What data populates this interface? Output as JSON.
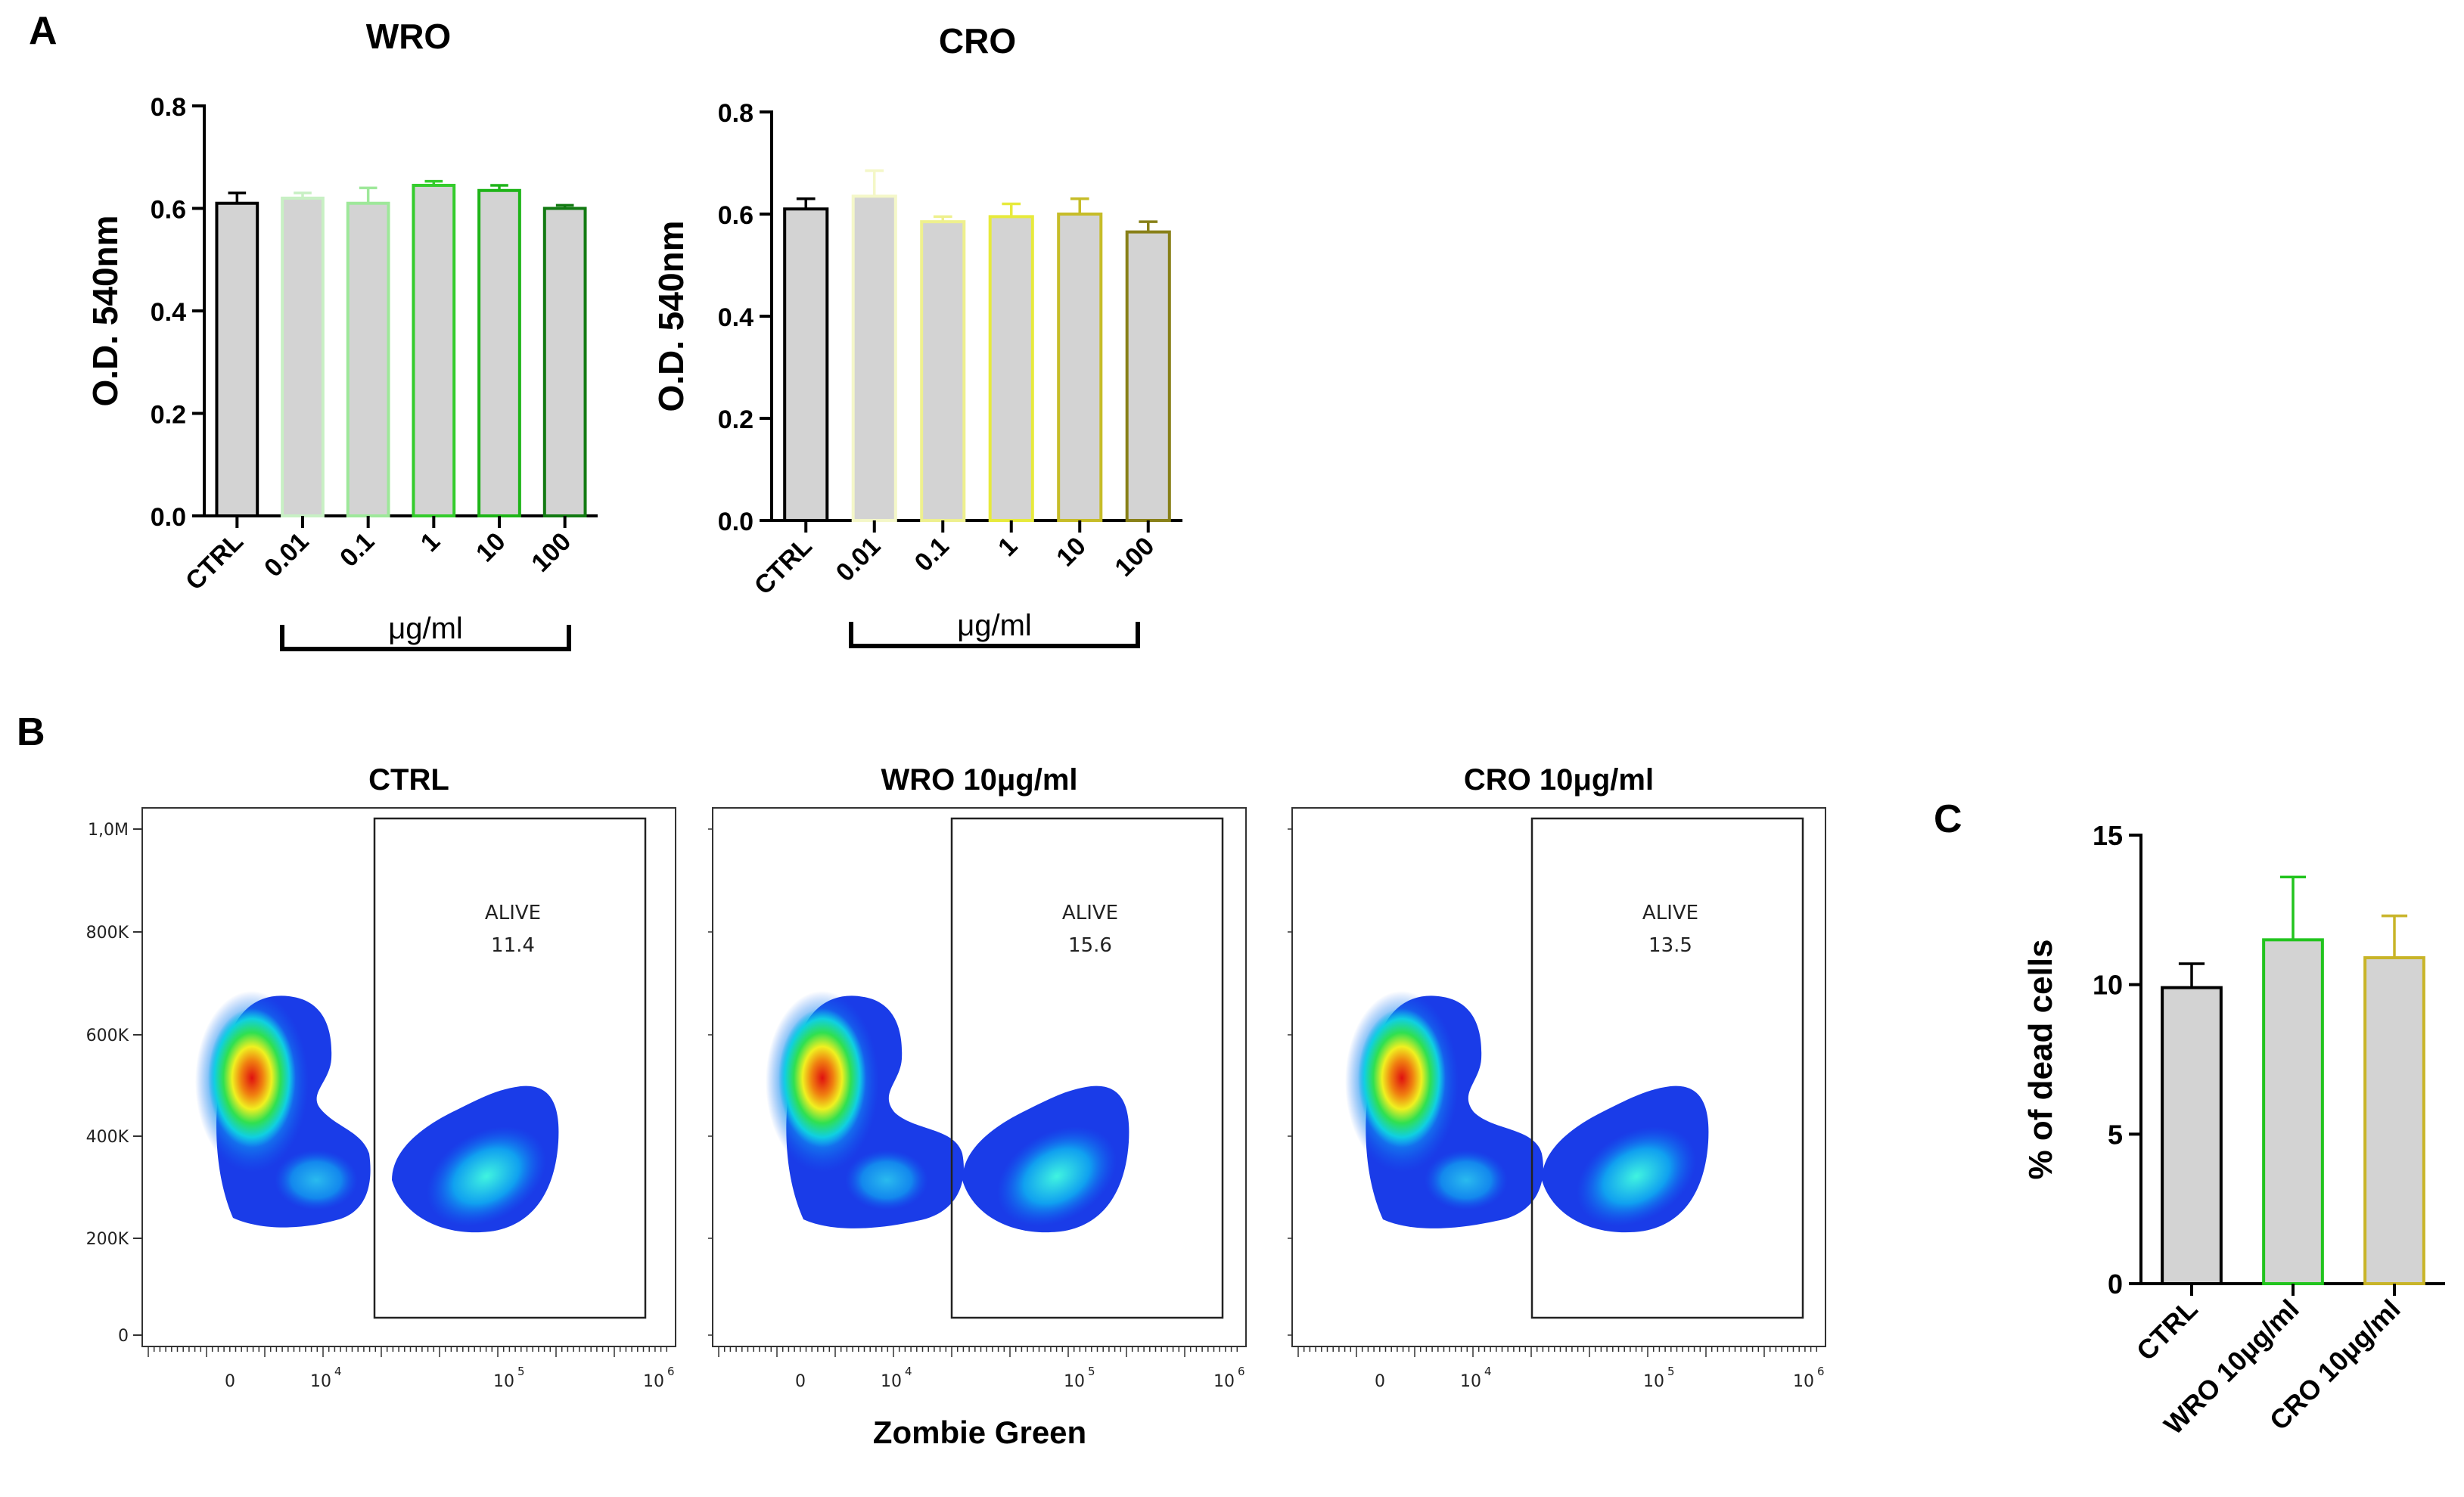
{
  "panel_labels": {
    "a": "A",
    "b": "B",
    "c": "C"
  },
  "colors": {
    "bar_fill": "#d3d3d3",
    "ctrl": "#000000",
    "wro": [
      "#000000",
      "#c8f0c4",
      "#9ee89a",
      "#34cc2c",
      "#1eb418",
      "#127a12"
    ],
    "cro": [
      "#000000",
      "#f4f7c8",
      "#eef08e",
      "#e7ea3c",
      "#c6bc28",
      "#888018"
    ],
    "c_panel": [
      "#000000",
      "#22c41e",
      "#c8b428"
    ]
  },
  "chart_data": [
    {
      "type": "bar",
      "title": "WRO",
      "ylabel": "O.D. 540nm",
      "xlabel": "",
      "categories": [
        "CTRL",
        "0.01",
        "0.1",
        "1",
        "10",
        "100"
      ],
      "values": [
        0.61,
        0.62,
        0.61,
        0.645,
        0.635,
        0.6
      ],
      "errors": [
        0.02,
        0.01,
        0.03,
        0.008,
        0.01,
        0.006
      ],
      "ylim": [
        0,
        0.8
      ],
      "yticks": [
        "0.0",
        "0.2",
        "0.4",
        "0.6",
        "0.8"
      ],
      "bracket_label": "μg/ml"
    },
    {
      "type": "bar",
      "title": "CRO",
      "ylabel": "O.D. 540nm",
      "xlabel": "",
      "categories": [
        "CTRL",
        "0.01",
        "0.1",
        "1",
        "10",
        "100"
      ],
      "values": [
        0.61,
        0.635,
        0.585,
        0.595,
        0.6,
        0.565
      ],
      "errors": [
        0.02,
        0.05,
        0.01,
        0.025,
        0.03,
        0.02
      ],
      "ylim": [
        0,
        0.8
      ],
      "yticks": [
        "0.0",
        "0.2",
        "0.4",
        "0.6",
        "0.8"
      ],
      "bracket_label": "μg/ml"
    },
    {
      "type": "bar",
      "title": "",
      "ylabel": "% of dead cells",
      "xlabel": "",
      "categories": [
        "CTRL",
        "WRO 10μg/ml",
        "CRO 10μg/ml"
      ],
      "values": [
        9.9,
        11.5,
        10.9
      ],
      "errors": [
        0.8,
        2.1,
        1.4
      ],
      "ylim": [
        0,
        15
      ],
      "yticks": [
        "0",
        "5",
        "10",
        "15"
      ]
    }
  ],
  "flow": {
    "xlabel": "Zombie Green",
    "yticks": [
      "1,0M",
      "800K",
      "600K",
      "400K",
      "200K",
      "0"
    ],
    "xticks": [
      "0",
      "10",
      "10",
      "10"
    ],
    "xtick_exps": [
      "4",
      "5",
      "6"
    ],
    "panels": [
      {
        "title": "CTRL",
        "gate_label": "ALIVE",
        "gate_value": "11.4"
      },
      {
        "title": "WRO 10μg/ml",
        "gate_label": "ALIVE",
        "gate_value": "15.6"
      },
      {
        "title": "CRO 10μg/ml",
        "gate_label": "ALIVE",
        "gate_value": "13.5"
      }
    ]
  }
}
